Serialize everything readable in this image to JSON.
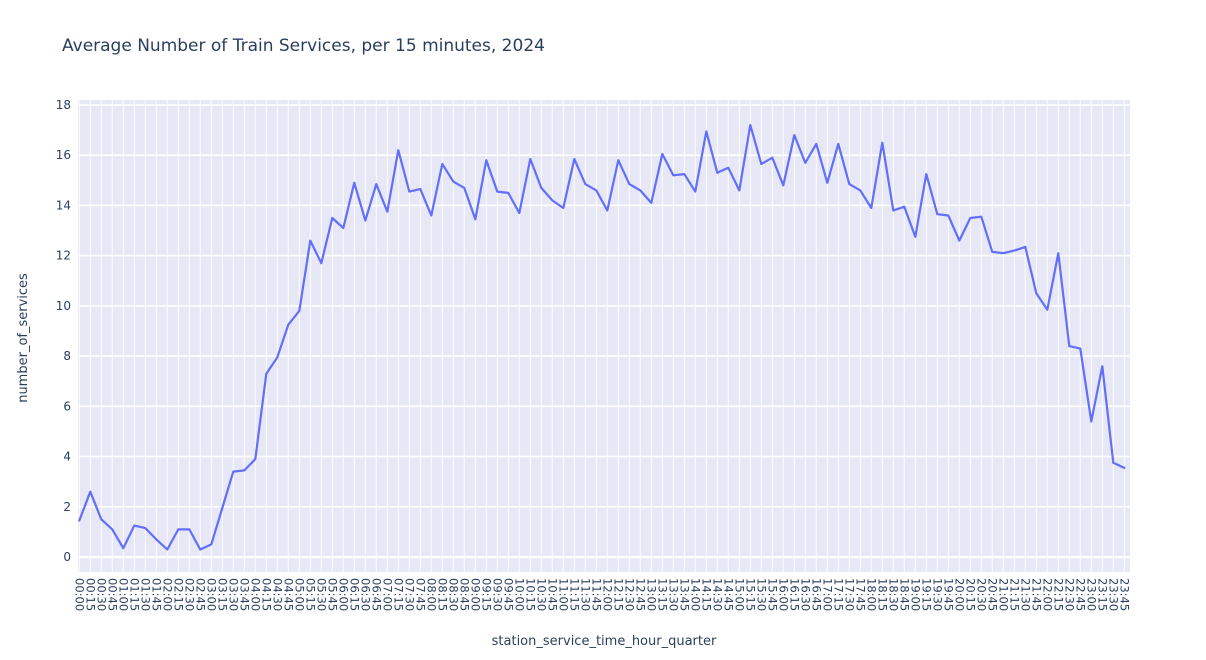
{
  "chart_data": {
    "type": "line",
    "title": "Average Number of Train Services, per 15 minutes, 2024",
    "xlabel": "station_service_time_hour_quarter",
    "ylabel": "number_of_services",
    "legend": "none",
    "grid": true,
    "x_tick_angle": 90,
    "ylim": [
      0,
      18
    ],
    "yticks": [
      0,
      2,
      4,
      6,
      8,
      10,
      12,
      14,
      16,
      18
    ],
    "categories": [
      "00:00",
      "00:15",
      "00:30",
      "00:45",
      "01:00",
      "01:15",
      "01:30",
      "01:45",
      "02:00",
      "02:15",
      "02:30",
      "02:45",
      "03:00",
      "03:15",
      "03:30",
      "03:45",
      "04:00",
      "04:15",
      "04:30",
      "04:45",
      "05:00",
      "05:15",
      "05:30",
      "05:45",
      "06:00",
      "06:15",
      "06:30",
      "06:45",
      "07:00",
      "07:15",
      "07:30",
      "07:45",
      "08:00",
      "08:15",
      "08:30",
      "08:45",
      "09:00",
      "09:15",
      "09:30",
      "09:45",
      "10:00",
      "10:15",
      "10:30",
      "10:45",
      "11:00",
      "11:15",
      "11:30",
      "11:45",
      "12:00",
      "12:15",
      "12:30",
      "12:45",
      "13:00",
      "13:15",
      "13:30",
      "13:45",
      "14:00",
      "14:15",
      "14:30",
      "14:45",
      "15:00",
      "15:15",
      "15:30",
      "15:45",
      "16:00",
      "16:15",
      "16:30",
      "16:45",
      "17:00",
      "17:15",
      "17:30",
      "17:45",
      "18:00",
      "18:15",
      "18:30",
      "18:45",
      "19:00",
      "19:15",
      "19:30",
      "19:45",
      "20:00",
      "20:15",
      "20:30",
      "20:45",
      "21:00",
      "21:15",
      "21:30",
      "21:45",
      "22:00",
      "22:15",
      "22:30",
      "22:45",
      "23:00",
      "23:15",
      "23:30",
      "23:45"
    ],
    "values": [
      1.45,
      2.6,
      1.5,
      1.1,
      0.35,
      1.25,
      1.15,
      0.7,
      0.3,
      1.1,
      1.1,
      0.3,
      0.5,
      1.95,
      3.4,
      3.45,
      3.9,
      7.3,
      7.95,
      9.25,
      9.8,
      12.6,
      11.7,
      13.5,
      13.1,
      14.9,
      13.4,
      14.85,
      13.75,
      16.2,
      14.55,
      14.65,
      13.6,
      15.65,
      14.95,
      14.7,
      13.45,
      15.8,
      14.55,
      14.5,
      13.7,
      15.85,
      14.7,
      14.2,
      13.9,
      15.85,
      14.85,
      14.6,
      13.8,
      15.8,
      14.85,
      14.6,
      14.1,
      16.05,
      15.2,
      15.25,
      14.55,
      16.95,
      15.3,
      15.5,
      14.6,
      17.2,
      15.65,
      15.9,
      14.8,
      16.8,
      15.7,
      16.45,
      14.9,
      16.45,
      14.85,
      14.6,
      13.9,
      16.5,
      13.8,
      13.95,
      12.75,
      15.25,
      13.65,
      13.6,
      12.6,
      13.5,
      13.55,
      12.15,
      12.1,
      12.2,
      12.35,
      10.5,
      9.85,
      12.1,
      8.4,
      8.3,
      5.4,
      7.6,
      3.75,
      3.55
    ],
    "colors": {
      "line": "#636efa",
      "plot_bg": "#e7e8f6",
      "grid": "#ffffff",
      "text": "#2a3f5f"
    }
  }
}
